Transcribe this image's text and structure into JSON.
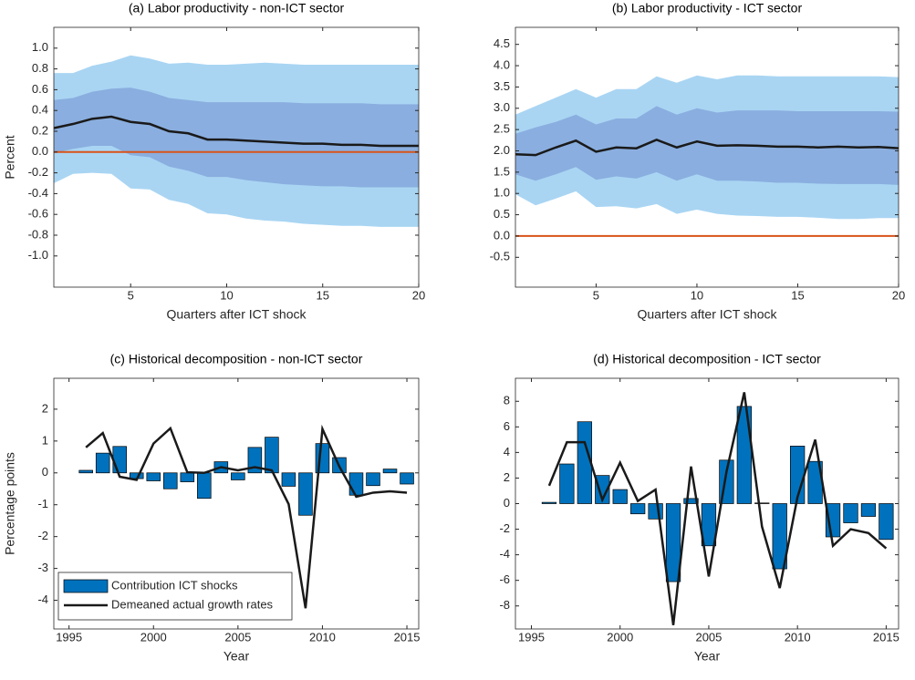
{
  "chart_data": [
    {
      "type": "band",
      "title": "(a) Labor productivity - non-ICT sector",
      "x_label": "Quarters after ICT shock",
      "y_label": "Percent",
      "x": [
        1,
        2,
        3,
        4,
        5,
        6,
        7,
        8,
        9,
        10,
        11,
        12,
        13,
        14,
        15,
        16,
        17,
        18,
        19,
        20
      ],
      "values": [
        0.23,
        0.27,
        0.32,
        0.34,
        0.29,
        0.27,
        0.2,
        0.18,
        0.12,
        0.12,
        0.11,
        0.1,
        0.09,
        0.08,
        0.08,
        0.07,
        0.07,
        0.06,
        0.06,
        0.06
      ],
      "color": "#1a1a1a",
      "bands": [
        {
          "color": "#a9d5f3",
          "lower": [
            -0.3,
            -0.21,
            -0.2,
            -0.21,
            -0.35,
            -0.36,
            -0.46,
            -0.5,
            -0.59,
            -0.6,
            -0.64,
            -0.66,
            -0.67,
            -0.69,
            -0.7,
            -0.71,
            -0.71,
            -0.72,
            -0.72,
            -0.72
          ],
          "upper": [
            0.76,
            0.76,
            0.83,
            0.87,
            0.93,
            0.9,
            0.85,
            0.86,
            0.84,
            0.84,
            0.85,
            0.86,
            0.85,
            0.84,
            0.84,
            0.84,
            0.84,
            0.84,
            0.84,
            0.84
          ]
        },
        {
          "color": "#8aaedf",
          "lower": [
            -0.01,
            0.03,
            0.06,
            0.06,
            -0.03,
            -0.05,
            -0.14,
            -0.18,
            -0.24,
            -0.24,
            -0.27,
            -0.29,
            -0.31,
            -0.32,
            -0.33,
            -0.33,
            -0.34,
            -0.34,
            -0.34,
            -0.34
          ],
          "upper": [
            0.5,
            0.52,
            0.58,
            0.61,
            0.62,
            0.58,
            0.52,
            0.5,
            0.48,
            0.48,
            0.48,
            0.48,
            0.48,
            0.47,
            0.47,
            0.47,
            0.47,
            0.46,
            0.46,
            0.46
          ]
        }
      ],
      "hline": 0,
      "hline_color": "#d95319",
      "xlim": [
        1,
        20
      ],
      "xticks": [
        5,
        10,
        15,
        20
      ],
      "ylim": [
        -1.3,
        1.2
      ],
      "yticks": [
        {
          "value": -1.0,
          "label": "-1.0"
        },
        -0.8,
        -0.6,
        -0.4,
        -0.2,
        {
          "value": 0,
          "label": "0.0"
        },
        0.2,
        0.4,
        0.6,
        0.8,
        {
          "value": 1.0,
          "label": "1.0"
        }
      ]
    },
    {
      "type": "band",
      "title": "(b) Labor productivity - ICT sector",
      "x_label": "Quarters after ICT shock",
      "x": [
        1,
        2,
        3,
        4,
        5,
        6,
        7,
        8,
        9,
        10,
        11,
        12,
        13,
        14,
        15,
        16,
        17,
        18,
        19,
        20
      ],
      "values": [
        1.92,
        1.9,
        2.08,
        2.24,
        1.98,
        2.08,
        2.06,
        2.26,
        2.08,
        2.22,
        2.12,
        2.13,
        2.12,
        2.1,
        2.1,
        2.08,
        2.1,
        2.08,
        2.09,
        2.06
      ],
      "color": "#1a1a1a",
      "bands": [
        {
          "color": "#a9d5f3",
          "lower": [
            0.98,
            0.72,
            0.88,
            1.05,
            0.68,
            0.7,
            0.65,
            0.75,
            0.52,
            0.62,
            0.52,
            0.48,
            0.47,
            0.45,
            0.45,
            0.43,
            0.4,
            0.4,
            0.42,
            0.42
          ],
          "upper": [
            2.85,
            3.05,
            3.25,
            3.45,
            3.25,
            3.45,
            3.45,
            3.75,
            3.6,
            3.77,
            3.68,
            3.77,
            3.77,
            3.75,
            3.75,
            3.75,
            3.75,
            3.75,
            3.75,
            3.73
          ]
        },
        {
          "color": "#8aaedf",
          "lower": [
            1.45,
            1.3,
            1.45,
            1.62,
            1.32,
            1.4,
            1.35,
            1.5,
            1.3,
            1.45,
            1.3,
            1.3,
            1.28,
            1.25,
            1.25,
            1.23,
            1.22,
            1.22,
            1.22,
            1.2
          ],
          "upper": [
            2.4,
            2.55,
            2.68,
            2.85,
            2.62,
            2.76,
            2.76,
            3.05,
            2.85,
            3.0,
            2.9,
            2.95,
            2.95,
            2.95,
            2.93,
            2.93,
            2.93,
            2.93,
            2.93,
            2.92
          ]
        }
      ],
      "hline": 0,
      "hline_color": "#d95319",
      "xlim": [
        1,
        20
      ],
      "xticks": [
        5,
        10,
        15,
        20
      ],
      "ylim": [
        -1.2,
        4.9
      ],
      "yticks": [
        -0.5,
        {
          "value": 0,
          "label": "0.0"
        },
        0.5,
        {
          "value": 1.0,
          "label": "1.0"
        },
        1.5,
        {
          "value": 2.0,
          "label": "2.0"
        },
        2.5,
        {
          "value": 3.0,
          "label": "3.0"
        },
        3.5,
        {
          "value": 4.0,
          "label": "4.0"
        },
        4.5
      ]
    },
    {
      "type": "combo",
      "title": "(c) Historical decomposition - non-ICT sector",
      "x_label": "Year",
      "y_label": "Percentage points",
      "x": [
        1996,
        1997,
        1998,
        1999,
        2000,
        2001,
        2002,
        2003,
        2004,
        2005,
        2006,
        2007,
        2008,
        2009,
        2010,
        2011,
        2012,
        2013,
        2014,
        2015
      ],
      "series": [
        {
          "name": "Contribution ICT shocks",
          "kind": "bar",
          "color": "#0072bd",
          "values": [
            0.08,
            0.62,
            0.83,
            -0.18,
            -0.25,
            -0.5,
            -0.28,
            -0.8,
            0.35,
            -0.22,
            0.8,
            1.12,
            -0.42,
            -1.33,
            0.92,
            0.48,
            -0.7,
            -0.4,
            0.12,
            -0.35
          ]
        },
        {
          "name": "Demeaned actual growth rates",
          "kind": "line",
          "color": "#1a1a1a",
          "values": [
            0.8,
            1.25,
            -0.12,
            -0.22,
            0.92,
            1.4,
            0.02,
            0.0,
            0.18,
            0.08,
            0.18,
            0.08,
            -0.98,
            -4.25,
            1.38,
            0.2,
            -0.75,
            -0.62,
            -0.58,
            -0.62
          ]
        }
      ],
      "legend": "lower left",
      "xlim": [
        1994.1,
        2015.7
      ],
      "xticks": [
        1995,
        2000,
        2005,
        2010,
        2015
      ],
      "ylim": [
        -4.9,
        2.97
      ],
      "yticks": [
        -4,
        -3,
        -2,
        -1,
        0,
        1,
        2
      ]
    },
    {
      "type": "combo",
      "title": "(d) Historical decomposition - ICT sector",
      "x_label": "Year",
      "x": [
        1996,
        1997,
        1998,
        1999,
        2000,
        2001,
        2002,
        2003,
        2004,
        2005,
        2006,
        2007,
        2008,
        2009,
        2010,
        2011,
        2012,
        2013,
        2014,
        2015
      ],
      "series": [
        {
          "kind": "bar",
          "color": "#0072bd",
          "values": [
            0.1,
            3.1,
            6.4,
            2.2,
            1.1,
            -0.8,
            -1.2,
            -6.1,
            0.4,
            -3.3,
            3.4,
            7.6,
            0.05,
            -5.1,
            4.5,
            3.3,
            -2.6,
            -1.5,
            -1.0,
            -2.8
          ]
        },
        {
          "kind": "line",
          "color": "#1a1a1a",
          "values": [
            1.4,
            4.8,
            4.8,
            0.3,
            3.2,
            0.2,
            1.1,
            -9.5,
            2.9,
            -5.7,
            2.5,
            8.7,
            -1.8,
            -6.6,
            0.5,
            5.0,
            -3.3,
            -2.0,
            -2.3,
            -3.5
          ]
        }
      ],
      "xlim": [
        1994.1,
        2015.7
      ],
      "xticks": [
        1995,
        2000,
        2005,
        2010,
        2015
      ],
      "ylim": [
        -9.8,
        9.8
      ],
      "yticks": [
        -8,
        -6,
        -4,
        -2,
        0,
        2,
        4,
        6,
        8
      ]
    }
  ]
}
